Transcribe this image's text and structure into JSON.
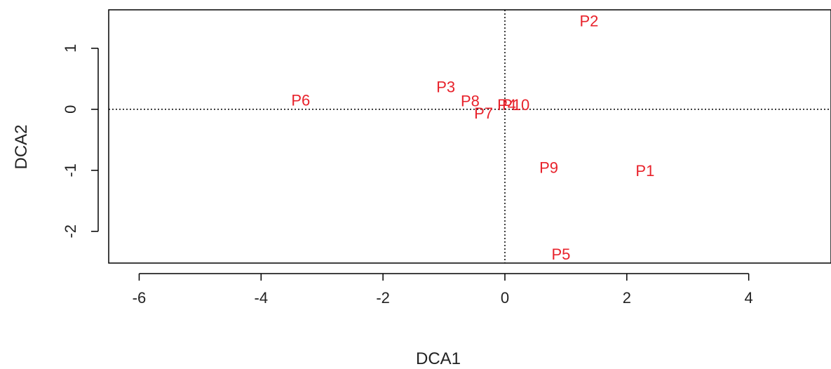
{
  "chart_data": {
    "type": "scatter",
    "title": "",
    "xlabel": "DCA1",
    "ylabel": "DCA2",
    "xlim": [
      -6.5,
      5.35
    ],
    "ylim": [
      -2.52,
      1.63
    ],
    "xticks": [
      -6,
      -4,
      -2,
      0,
      2,
      4
    ],
    "yticks": [
      -2,
      -1,
      0,
      1
    ],
    "xtick_labels": [
      "-6",
      "-4",
      "-2",
      "0",
      "2",
      "4"
    ],
    "ytick_labels": [
      "-2",
      "-1",
      "0",
      "1"
    ],
    "reference_lines": {
      "x": 0,
      "y": 0,
      "style": "dotted"
    },
    "grid": false,
    "label_color": "#e8222b",
    "points": [
      {
        "label": "P1",
        "x": 2.3,
        "y": -1.0
      },
      {
        "label": "P2",
        "x": 1.38,
        "y": 1.45
      },
      {
        "label": "P3",
        "x": -0.97,
        "y": 0.37
      },
      {
        "label": "P4",
        "x": 0.03,
        "y": 0.08
      },
      {
        "label": "P5",
        "x": 0.92,
        "y": -2.37
      },
      {
        "label": "P6",
        "x": -3.35,
        "y": 0.15
      },
      {
        "label": "P7",
        "x": -0.35,
        "y": -0.06
      },
      {
        "label": "P8",
        "x": -0.57,
        "y": 0.14
      },
      {
        "label": "P9",
        "x": 0.72,
        "y": -0.95
      },
      {
        "label": "P10",
        "x": 0.18,
        "y": 0.08
      }
    ]
  }
}
